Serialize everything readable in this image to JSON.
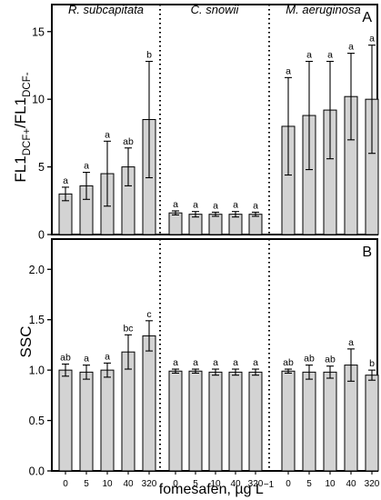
{
  "chart_data": [
    {
      "type": "bar",
      "panel": "A",
      "ylabel": {
        "main": "FL1",
        "sub1": "DCF+",
        "sep": "/FL1",
        "sub2": "DCF-"
      },
      "ylim": [
        0,
        17
      ],
      "yticks": [
        0,
        5,
        10,
        15
      ],
      "categories": [
        "0",
        "5",
        "10",
        "40",
        "320"
      ],
      "groups": [
        {
          "name": "R. subcapitata",
          "values": [
            3.0,
            3.6,
            4.5,
            5.0,
            8.5
          ],
          "errors": [
            0.5,
            1.0,
            2.4,
            1.4,
            4.3
          ],
          "labels": [
            "a",
            "a",
            "a",
            "ab",
            "b"
          ]
        },
        {
          "name": "C. snowii",
          "values": [
            1.6,
            1.5,
            1.5,
            1.5,
            1.5
          ],
          "errors": [
            0.15,
            0.2,
            0.15,
            0.2,
            0.15
          ],
          "labels": [
            "a",
            "a",
            "a",
            "a",
            "a"
          ]
        },
        {
          "name": "M. aeruginosa",
          "values": [
            8.0,
            8.8,
            9.2,
            10.2,
            10.0
          ],
          "errors": [
            3.6,
            4.0,
            3.6,
            3.2,
            4.0
          ],
          "labels": [
            "a",
            "a",
            "a",
            "a",
            "a"
          ]
        }
      ]
    },
    {
      "type": "bar",
      "panel": "B",
      "ylabel": {
        "main": "SSC"
      },
      "ylim": [
        0,
        2.3
      ],
      "yticks": [
        "0.0",
        "0.5",
        "1.0",
        "1.5",
        "2.0"
      ],
      "categories": [
        "0",
        "5",
        "10",
        "40",
        "320"
      ],
      "xlabel": {
        "main": "fomesafen, µg L",
        "sup": "−1"
      },
      "groups": [
        {
          "name": "",
          "values": [
            1.0,
            0.98,
            1.0,
            1.18,
            1.34
          ],
          "errors": [
            0.06,
            0.07,
            0.07,
            0.17,
            0.15
          ],
          "labels": [
            "ab",
            "a",
            "a",
            "bc",
            "c"
          ]
        },
        {
          "name": "",
          "values": [
            0.99,
            0.99,
            0.98,
            0.98,
            0.98
          ],
          "errors": [
            0.02,
            0.02,
            0.03,
            0.03,
            0.03
          ],
          "labels": [
            "a",
            "a",
            "a",
            "a",
            "a"
          ]
        },
        {
          "name": "",
          "values": [
            0.99,
            0.98,
            0.98,
            1.05,
            0.95
          ],
          "errors": [
            0.02,
            0.07,
            0.06,
            0.16,
            0.05
          ],
          "labels": [
            "ab",
            "ab",
            "ab",
            "a",
            "b"
          ]
        }
      ]
    }
  ],
  "colors": {
    "bar_fill": "#d3d3d3",
    "stroke": "#000000",
    "background": "#ffffff"
  }
}
